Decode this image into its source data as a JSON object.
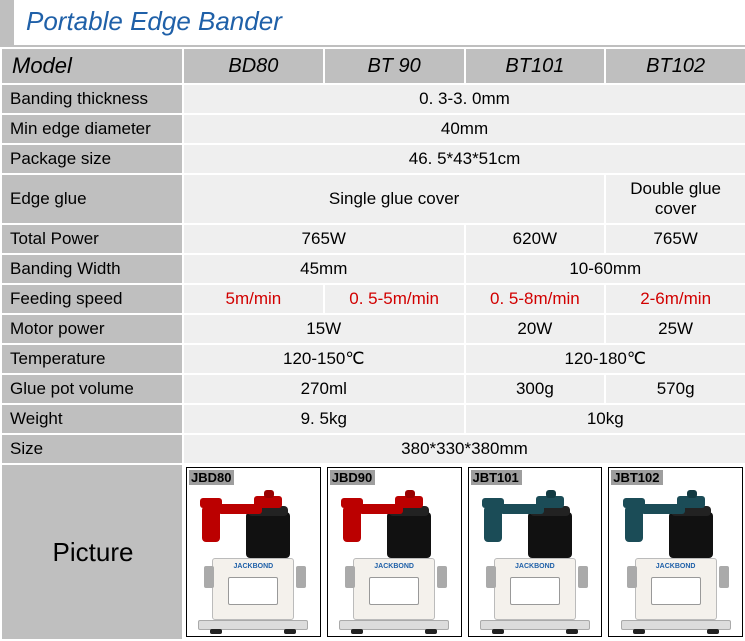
{
  "title": "Portable Edge Bander",
  "header": {
    "label": "Model",
    "models": [
      "BD80",
      "BT 90",
      "BT101",
      "BT102"
    ]
  },
  "rows": [
    {
      "label": "Banding thickness",
      "cells": [
        {
          "span": 4,
          "value": "0. 3-3. 0mm"
        }
      ]
    },
    {
      "label": "Min edge diameter",
      "cells": [
        {
          "span": 4,
          "value": "40mm"
        }
      ]
    },
    {
      "label": "Package size",
      "cells": [
        {
          "span": 4,
          "value": "46. 5*43*51cm"
        }
      ]
    },
    {
      "label": "Edge glue",
      "cells": [
        {
          "span": 3,
          "value": "Single glue cover"
        },
        {
          "span": 1,
          "value": "Double glue cover"
        }
      ]
    },
    {
      "label": "Total Power",
      "cells": [
        {
          "span": 2,
          "value": "765W"
        },
        {
          "span": 1,
          "value": "620W"
        },
        {
          "span": 1,
          "value": "765W"
        }
      ]
    },
    {
      "label": "Banding Width",
      "cells": [
        {
          "span": 2,
          "value": "45mm"
        },
        {
          "span": 2,
          "value": "10-60mm"
        }
      ]
    },
    {
      "label": "Feeding speed",
      "cells": [
        {
          "span": 1,
          "value": "5m/min",
          "red": true
        },
        {
          "span": 1,
          "value": "0. 5-5m/min",
          "red": true
        },
        {
          "span": 1,
          "value": "0. 5-8m/min",
          "red": true
        },
        {
          "span": 1,
          "value": "2-6m/min",
          "red": true
        }
      ]
    },
    {
      "label": "Motor power",
      "cells": [
        {
          "span": 2,
          "value": "15W"
        },
        {
          "span": 1,
          "value": "20W"
        },
        {
          "span": 1,
          "value": "25W"
        }
      ]
    },
    {
      "label": "Temperature",
      "cells": [
        {
          "span": 2,
          "value": "120-150℃"
        },
        {
          "span": 2,
          "value": "120-180℃"
        }
      ]
    },
    {
      "label": "Glue pot volume",
      "cells": [
        {
          "span": 2,
          "value": "270ml"
        },
        {
          "span": 1,
          "value": "300g"
        },
        {
          "span": 1,
          "value": "570g"
        }
      ]
    },
    {
      "label": "Weight",
      "cells": [
        {
          "span": 2,
          "value": "9. 5kg"
        },
        {
          "span": 2,
          "value": "10kg"
        }
      ]
    },
    {
      "label": "Size",
      "cells": [
        {
          "span": 4,
          "value": "380*330*380mm"
        }
      ]
    }
  ],
  "picture_row": {
    "label": "Picture",
    "items": [
      {
        "tag": "JBD80",
        "accent": "red",
        "brand": "JACKBOND"
      },
      {
        "tag": "JBD90",
        "accent": "red",
        "brand": "JACKBOND"
      },
      {
        "tag": "JBT101",
        "accent": "dark",
        "brand": "JACKBOND"
      },
      {
        "tag": "JBT102",
        "accent": "dark",
        "brand": "JACKBOND"
      }
    ]
  },
  "colors": {
    "title_text": "#1f60a8",
    "grey_header": "#bfbfbf",
    "cell_bg": "#efefef",
    "border": "#ffffff",
    "red_text": "#d10000",
    "accent_red": "#b00000",
    "accent_dark": "#1b4c57"
  }
}
